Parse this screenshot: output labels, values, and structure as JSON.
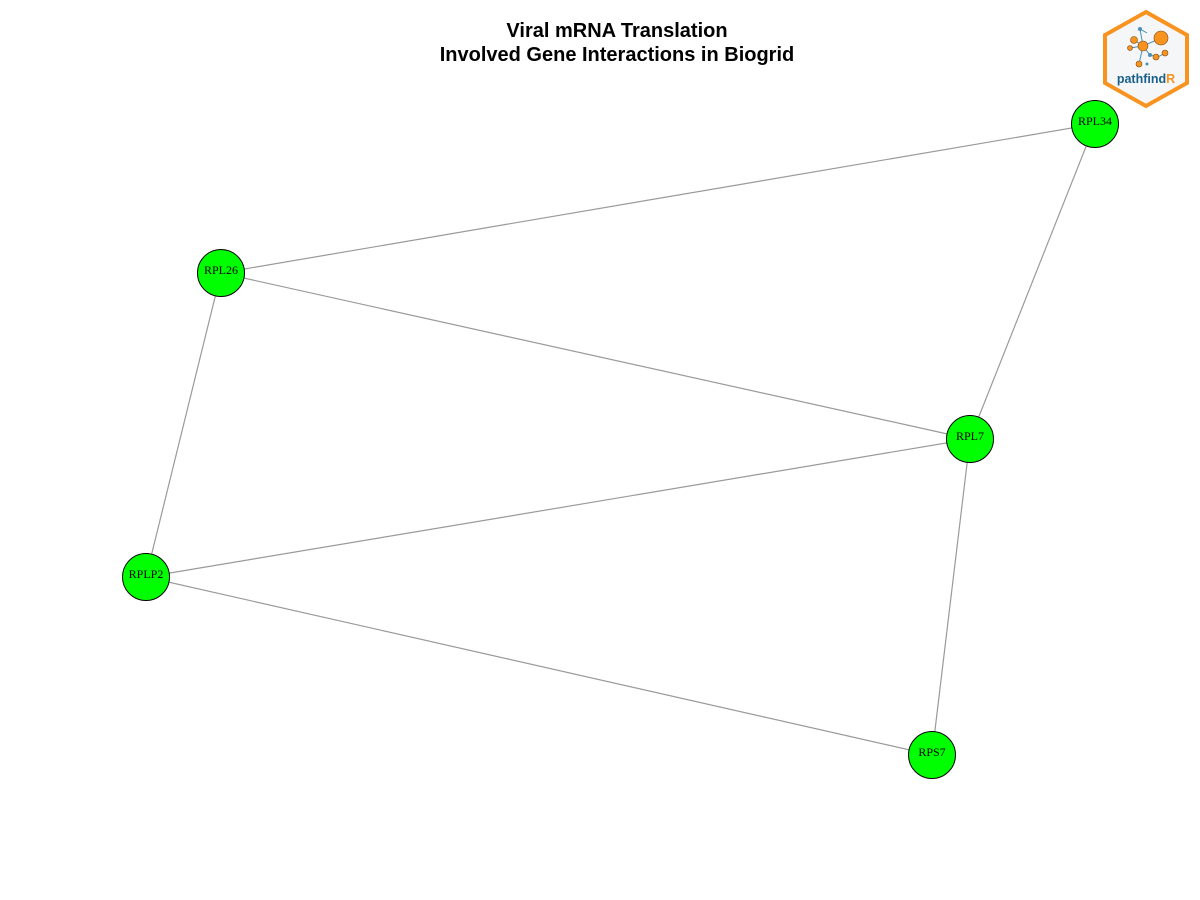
{
  "title": {
    "line1": "Viral mRNA Translation",
    "line2": "Involved Gene Interactions in Biogrid"
  },
  "logo": {
    "text_main": "pathfind",
    "text_accent": "R",
    "colors": {
      "border": "#f7931e",
      "text_main": "#1a5f8a",
      "text_accent": "#f7931e",
      "node": "#f7931e",
      "edge": "#4a90b8"
    }
  },
  "network": {
    "node_color": "#00ff00",
    "edge_color": "#9a9a9a",
    "nodes": [
      {
        "id": "RPL34",
        "label": "RPL34"
      },
      {
        "id": "RPL26",
        "label": "RPL26"
      },
      {
        "id": "RPL7",
        "label": "RPL7"
      },
      {
        "id": "RPLP2",
        "label": "RPLP2"
      },
      {
        "id": "RPS7",
        "label": "RPS7"
      }
    ],
    "edges": [
      {
        "source": "RPL26",
        "target": "RPL34"
      },
      {
        "source": "RPL34",
        "target": "RPL7"
      },
      {
        "source": "RPL26",
        "target": "RPL7"
      },
      {
        "source": "RPL26",
        "target": "RPLP2"
      },
      {
        "source": "RPLP2",
        "target": "RPL7"
      },
      {
        "source": "RPLP2",
        "target": "RPS7"
      },
      {
        "source": "RPL7",
        "target": "RPS7"
      }
    ]
  }
}
